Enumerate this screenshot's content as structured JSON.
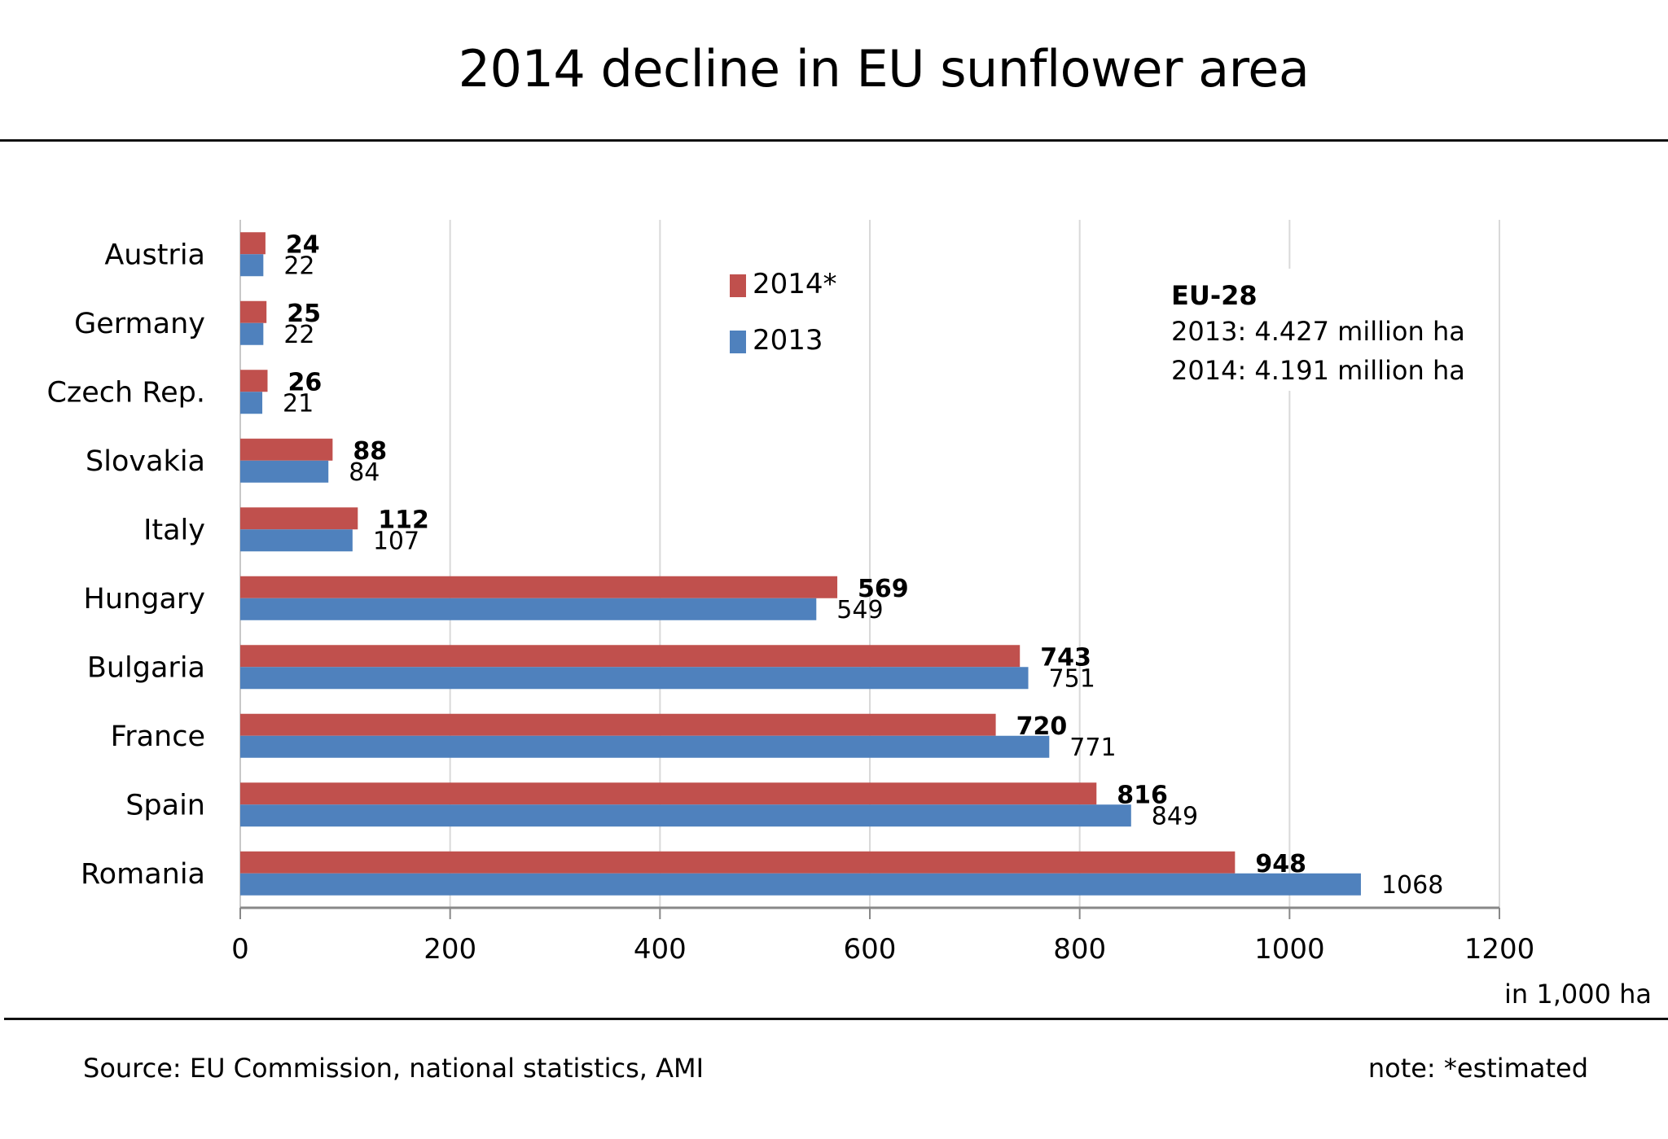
{
  "chart_data": {
    "type": "bar",
    "orientation": "horizontal",
    "title": "2014 decline in EU sunflower area",
    "categories": [
      "Austria",
      "Germany",
      "Czech Rep.",
      "Slovakia",
      "Italy",
      "Hungary",
      "Bulgaria",
      "France",
      "Spain",
      "Romania"
    ],
    "series": [
      {
        "name": "2014*",
        "color": "#c0504d",
        "values": [
          24,
          25,
          26,
          88,
          112,
          569,
          743,
          720,
          816,
          948
        ]
      },
      {
        "name": "2013",
        "color": "#4f81bd",
        "values": [
          22,
          22,
          21,
          84,
          107,
          549,
          751,
          771,
          849,
          1068
        ]
      }
    ],
    "xlabel": "in 1,000  ha",
    "ylabel": "",
    "xlim": [
      0,
      1200
    ],
    "xticks": [
      0,
      200,
      400,
      600,
      800,
      1000,
      1200
    ],
    "grid": true,
    "legend_position": "top-center",
    "annotation": {
      "heading": "EU-28",
      "lines": [
        "2013: 4.427 million ha",
        "2014: 4.191 million ha"
      ]
    }
  },
  "footer": {
    "source": "Source:  EU Commission, national statistics, AMI",
    "note": "note: *estimated"
  }
}
